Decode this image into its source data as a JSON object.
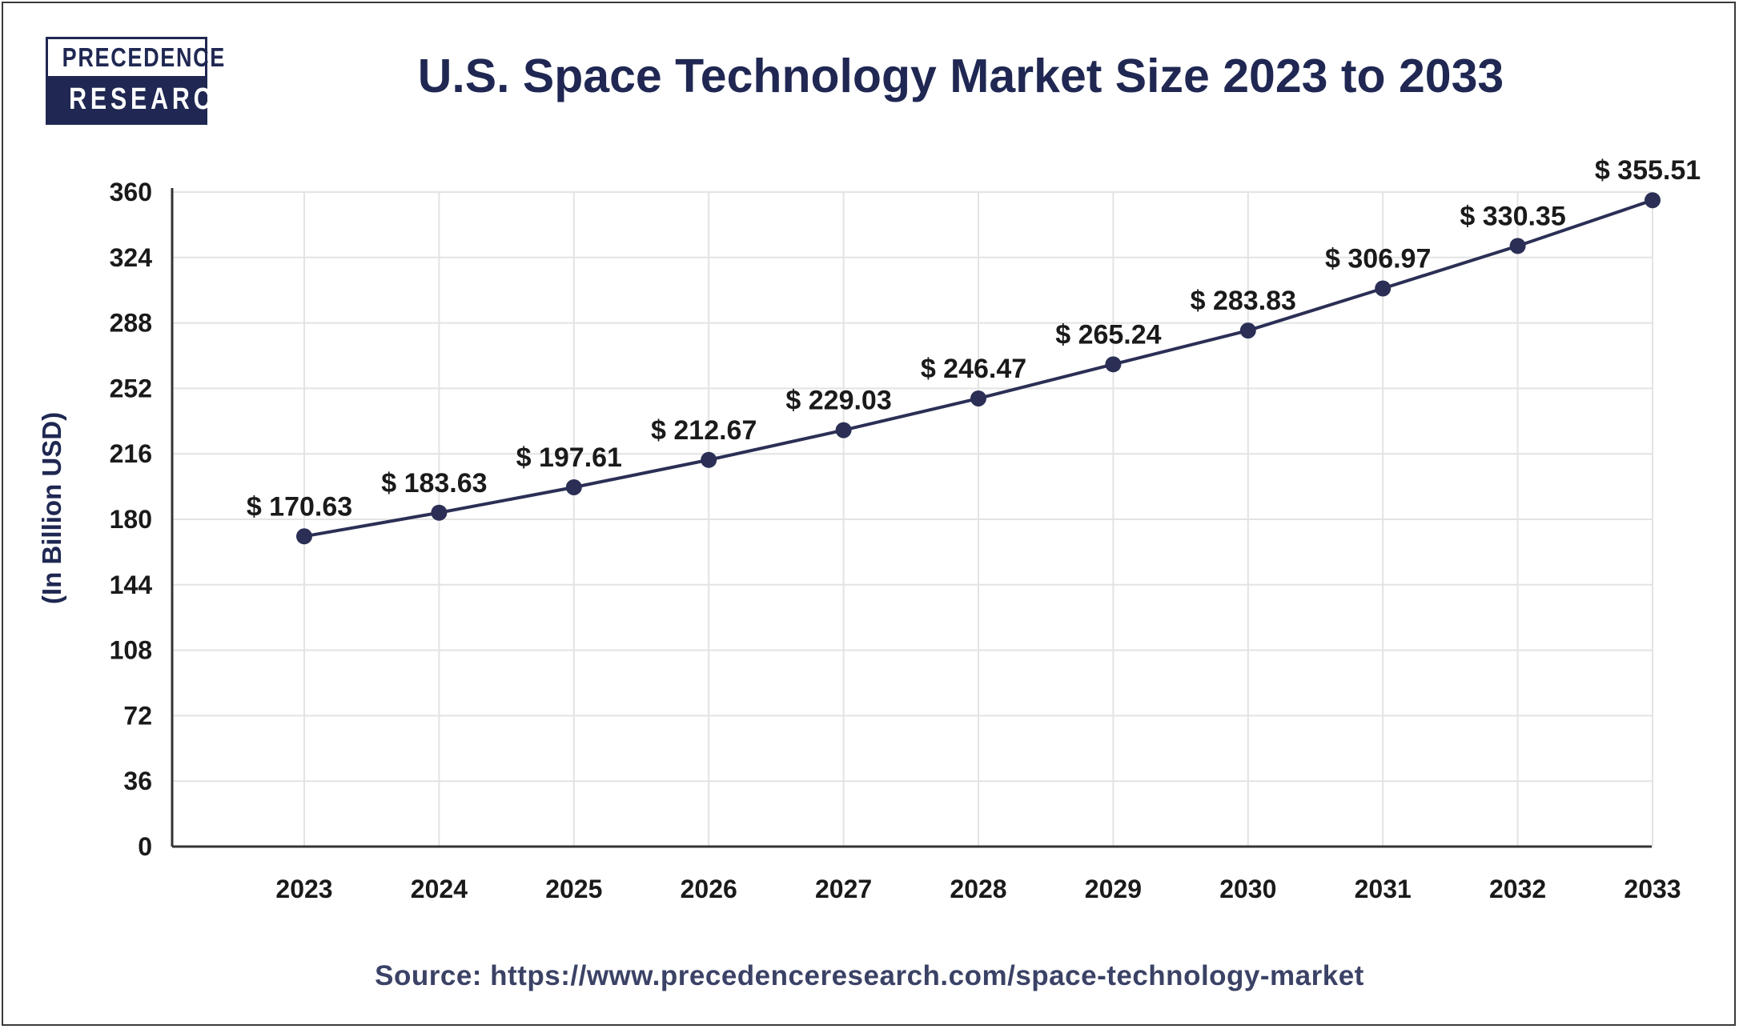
{
  "logo": {
    "top": "PRECEDENCE",
    "bottom": "RESEARCH"
  },
  "source": "Source: https://www.precedenceresearch.com/space-technology-market",
  "colors": {
    "brand": "#1f2752",
    "line": "#2b2f55",
    "grid": "#e3e3e3"
  },
  "chart_data": {
    "type": "line",
    "title": "U.S. Space Technology Market Size 2023 to 2033",
    "xlabel": "",
    "ylabel": "(In Billion USD)",
    "x": [
      "2023",
      "2024",
      "2025",
      "2026",
      "2027",
      "2028",
      "2029",
      "2030",
      "2031",
      "2032",
      "2033"
    ],
    "series": [
      {
        "values": [
          170.63,
          183.63,
          197.61,
          212.67,
          229.03,
          246.47,
          265.24,
          283.83,
          306.97,
          330.35,
          355.51
        ]
      }
    ],
    "data_labels": [
      "$ 170.63",
      "$ 183.63",
      "$ 197.61",
      "$ 212.67",
      "$ 229.03",
      "$ 246.47",
      "$ 265.24",
      "$ 283.83",
      "$ 306.97",
      "$ 330.35",
      "$ 355.51"
    ],
    "ylim": [
      0,
      360
    ],
    "yticks": [
      0,
      36,
      72,
      108,
      144,
      180,
      216,
      252,
      288,
      324,
      360
    ],
    "grid": true
  }
}
